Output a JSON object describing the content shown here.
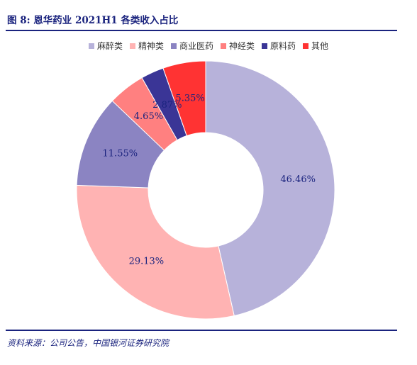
{
  "figure": {
    "title": "图 8:  恩华药业 2021H1 各类收入占比"
  },
  "source": "资料来源：公司公告，中国银河证券研究院",
  "chart_data": {
    "type": "pie",
    "style": "donut",
    "categories": [
      "麻醉类",
      "精神类",
      "商业医药",
      "神经类",
      "原料药",
      "其他"
    ],
    "values": [
      46.46,
      29.13,
      11.55,
      4.65,
      2.87,
      5.35
    ],
    "labels": [
      "46.46%",
      "29.13%",
      "11.55%",
      "4.65%",
      "2.87%",
      "5.35%"
    ],
    "colors": [
      "#b7b2da",
      "#ffb3b3",
      "#8b84c2",
      "#ff8080",
      "#3a3596",
      "#ff3333"
    ],
    "legend_position": "top",
    "start": "12 o'clock",
    "direction": "clockwise"
  }
}
